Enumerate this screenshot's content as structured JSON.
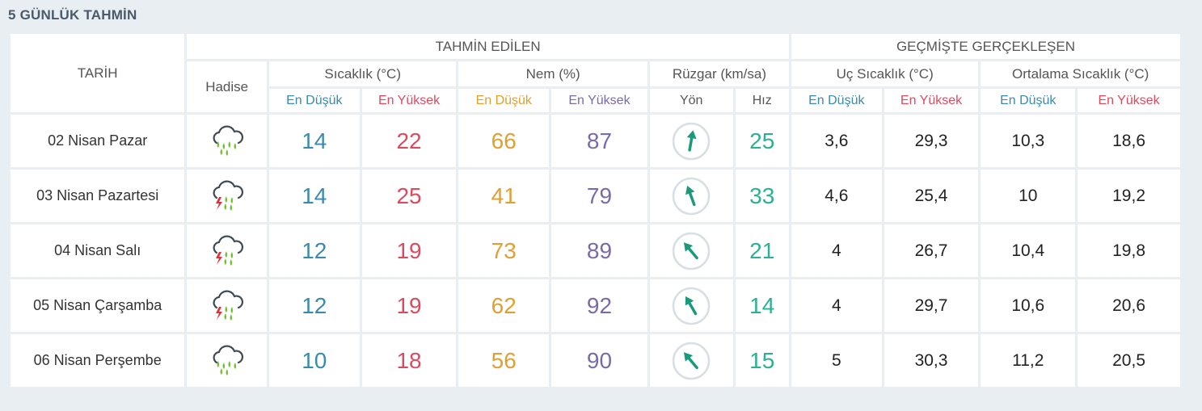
{
  "page_title": "5 GÜNLÜK TAHMİN",
  "headers": {
    "date": "TARİH",
    "forecast": "TAHMİN EDİLEN",
    "history": "GEÇMİŞTE GERÇEKLEŞEN",
    "event": "Hadise",
    "temp": "Sıcaklık (°C)",
    "humidity": "Nem (%)",
    "wind": "Rüzgar (km/sa)",
    "extreme_temp": "Uç Sıcaklık (°C)",
    "avg_temp": "Ortalama Sıcaklık (°C)",
    "low": "En Düşük",
    "high": "En Yüksek",
    "direction": "Yön",
    "speed": "Hız"
  },
  "colors": {
    "low": "#3a8ab0",
    "high": "#dc4a5e",
    "hum_low": "#e0a030",
    "hum_high": "#7a6aa8",
    "speed": "#2bb094",
    "wind_arrow": "#1a9a7a"
  },
  "rows": [
    {
      "date": "02 Nisan Pazar",
      "icon": "rain-cloud-icon",
      "temp_low": "14",
      "temp_high": "22",
      "hum_low": "66",
      "hum_high": "87",
      "wind_dir_deg": 10,
      "wind_speed": "25",
      "ext_low": "3,6",
      "ext_high": "29,3",
      "avg_low": "10,3",
      "avg_high": "18,6"
    },
    {
      "date": "03 Nisan Pazartesi",
      "icon": "thunderstorm-cloud-icon",
      "temp_low": "14",
      "temp_high": "25",
      "hum_low": "41",
      "hum_high": "79",
      "wind_dir_deg": -20,
      "wind_speed": "33",
      "ext_low": "4,6",
      "ext_high": "25,4",
      "avg_low": "10",
      "avg_high": "19,2"
    },
    {
      "date": "04 Nisan Salı",
      "icon": "thunderstorm-cloud-icon",
      "temp_low": "12",
      "temp_high": "19",
      "hum_low": "73",
      "hum_high": "89",
      "wind_dir_deg": -40,
      "wind_speed": "21",
      "ext_low": "4",
      "ext_high": "26,7",
      "avg_low": "10,4",
      "avg_high": "19,8"
    },
    {
      "date": "05 Nisan Çarşamba",
      "icon": "thunderstorm-cloud-icon",
      "temp_low": "12",
      "temp_high": "19",
      "hum_low": "62",
      "hum_high": "92",
      "wind_dir_deg": -30,
      "wind_speed": "14",
      "ext_low": "4",
      "ext_high": "29,7",
      "avg_low": "10,6",
      "avg_high": "20,6"
    },
    {
      "date": "06 Nisan Perşembe",
      "icon": "rain-cloud-icon",
      "temp_low": "10",
      "temp_high": "18",
      "hum_low": "56",
      "hum_high": "90",
      "wind_dir_deg": -40,
      "wind_speed": "15",
      "ext_low": "5",
      "ext_high": "30,3",
      "avg_low": "11,2",
      "avg_high": "20,5"
    }
  ]
}
